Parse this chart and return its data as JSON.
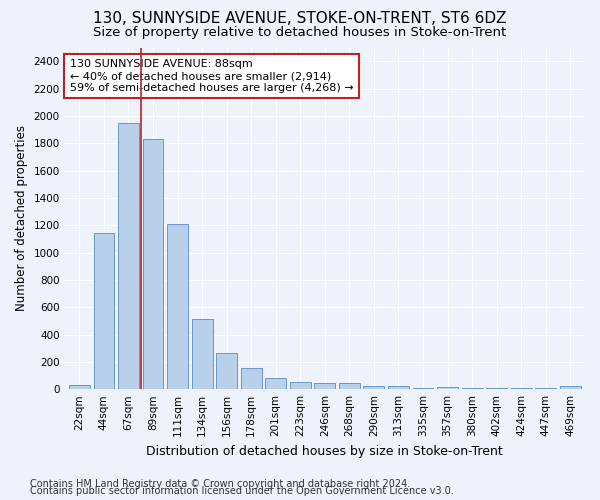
{
  "title": "130, SUNNYSIDE AVENUE, STOKE-ON-TRENT, ST6 6DZ",
  "subtitle": "Size of property relative to detached houses in Stoke-on-Trent",
  "xlabel": "Distribution of detached houses by size in Stoke-on-Trent",
  "ylabel": "Number of detached properties",
  "bar_labels": [
    "22sqm",
    "44sqm",
    "67sqm",
    "89sqm",
    "111sqm",
    "134sqm",
    "156sqm",
    "178sqm",
    "201sqm",
    "223sqm",
    "246sqm",
    "268sqm",
    "290sqm",
    "313sqm",
    "335sqm",
    "357sqm",
    "380sqm",
    "402sqm",
    "424sqm",
    "447sqm",
    "469sqm"
  ],
  "bar_values": [
    30,
    1145,
    1945,
    1830,
    1205,
    510,
    265,
    155,
    80,
    50,
    45,
    42,
    20,
    20,
    10,
    15,
    5,
    5,
    5,
    5,
    20
  ],
  "bar_color": "#b8d0ea",
  "bar_edge_color": "#6898c8",
  "vline_x": 3,
  "vline_color": "#bb2222",
  "annotation_text": "130 SUNNYSIDE AVENUE: 88sqm\n← 40% of detached houses are smaller (2,914)\n59% of semi-detached houses are larger (4,268) →",
  "annotation_box_color": "#ffffff",
  "annotation_edge_color": "#bb2222",
  "ylim": [
    0,
    2500
  ],
  "yticks": [
    0,
    200,
    400,
    600,
    800,
    1000,
    1200,
    1400,
    1600,
    1800,
    2000,
    2200,
    2400
  ],
  "footer_line1": "Contains HM Land Registry data © Crown copyright and database right 2024.",
  "footer_line2": "Contains public sector information licensed under the Open Government Licence v3.0.",
  "background_color": "#eef2fa",
  "plot_background": "#eef2fa",
  "grid_color": "#ffffff",
  "title_fontsize": 11,
  "subtitle_fontsize": 9.5,
  "xlabel_fontsize": 9,
  "ylabel_fontsize": 8.5,
  "tick_fontsize": 7.5,
  "annotation_fontsize": 8,
  "footer_fontsize": 7
}
